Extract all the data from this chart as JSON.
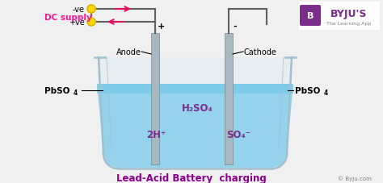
{
  "title": "Lead-Acid Battery  charging",
  "title_color": "#8B008B",
  "bg_color": "#f0f0f0",
  "beaker_fill_color": "#d0eaf5",
  "beaker_edge_color": "#a0c0d0",
  "liquid_top_color": "#6fc8e8",
  "liquid_bot_color": "#87CEEB",
  "electrode_color": "#a8b8c0",
  "electrode_dark": "#7a8a90",
  "wire_color": "#606060",
  "dc_label": "DC supply",
  "dc_color": "#FF1493",
  "neg_label": "-ve",
  "pos_label": "+ve",
  "anode_label": "Anode",
  "cathode_label": "Cathode",
  "pbso4_left": "PbSO",
  "pbso4_right": "PbSO",
  "h2so4_label": "H₂SO₄",
  "h2plus_label": "2H⁺",
  "so4minus_label": "SO₄⁻",
  "label_color": "#7B2D8B",
  "arrow_color": "#E0115F",
  "dot_color": "#FFD700",
  "dot_edge": "#ccaa00",
  "plus_sign": "+",
  "minus_sign": "-",
  "copyright": "© Byju.com",
  "byju_bg": "#7B2D8B",
  "byju_text": "BYJU'S",
  "byju_sub": "The Learning App"
}
